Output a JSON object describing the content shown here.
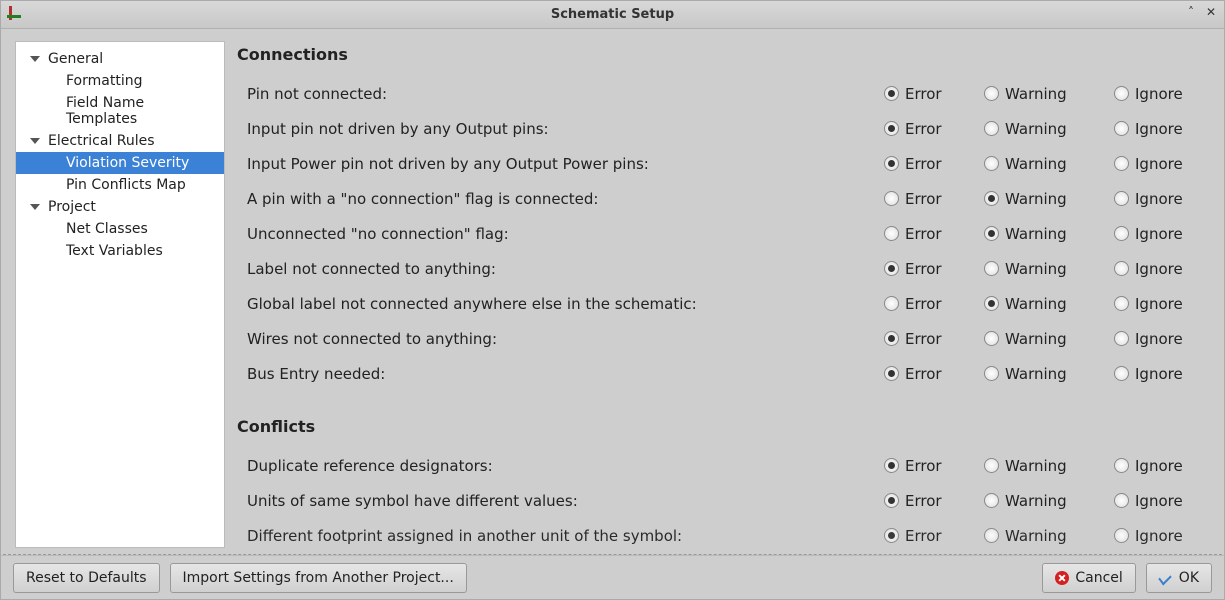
{
  "window": {
    "title": "Schematic Setup"
  },
  "sidebar": {
    "groups": [
      {
        "label": "General",
        "items": [
          {
            "label": "Formatting"
          },
          {
            "label": "Field Name Templates"
          }
        ]
      },
      {
        "label": "Electrical Rules",
        "items": [
          {
            "label": "Violation Severity",
            "selected": true
          },
          {
            "label": "Pin Conflicts Map"
          }
        ]
      },
      {
        "label": "Project",
        "items": [
          {
            "label": "Net Classes"
          },
          {
            "label": "Text Variables"
          }
        ]
      }
    ]
  },
  "severity_labels": {
    "error": "Error",
    "warning": "Warning",
    "ignore": "Ignore"
  },
  "sections": [
    {
      "title": "Connections",
      "rules": [
        {
          "label": "Pin not connected:",
          "value": "error"
        },
        {
          "label": "Input pin not driven by any Output pins:",
          "value": "error"
        },
        {
          "label": "Input Power pin not driven by any Output Power pins:",
          "value": "error"
        },
        {
          "label": "A pin with a \"no connection\" flag is connected:",
          "value": "warning"
        },
        {
          "label": "Unconnected \"no connection\" flag:",
          "value": "warning"
        },
        {
          "label": "Label not connected to anything:",
          "value": "error"
        },
        {
          "label": "Global label not connected anywhere else in the schematic:",
          "value": "warning"
        },
        {
          "label": "Wires not connected to anything:",
          "value": "error"
        },
        {
          "label": "Bus Entry needed:",
          "value": "error"
        }
      ]
    },
    {
      "title": "Conflicts",
      "rules": [
        {
          "label": "Duplicate reference designators:",
          "value": "error"
        },
        {
          "label": "Units of same symbol have different values:",
          "value": "error"
        },
        {
          "label": "Different footprint assigned in another unit of the symbol:",
          "value": "error",
          "cutoff": true
        }
      ]
    }
  ],
  "footer": {
    "reset": "Reset to Defaults",
    "import": "Import Settings from Another Project...",
    "cancel": "Cancel",
    "ok": "OK"
  }
}
